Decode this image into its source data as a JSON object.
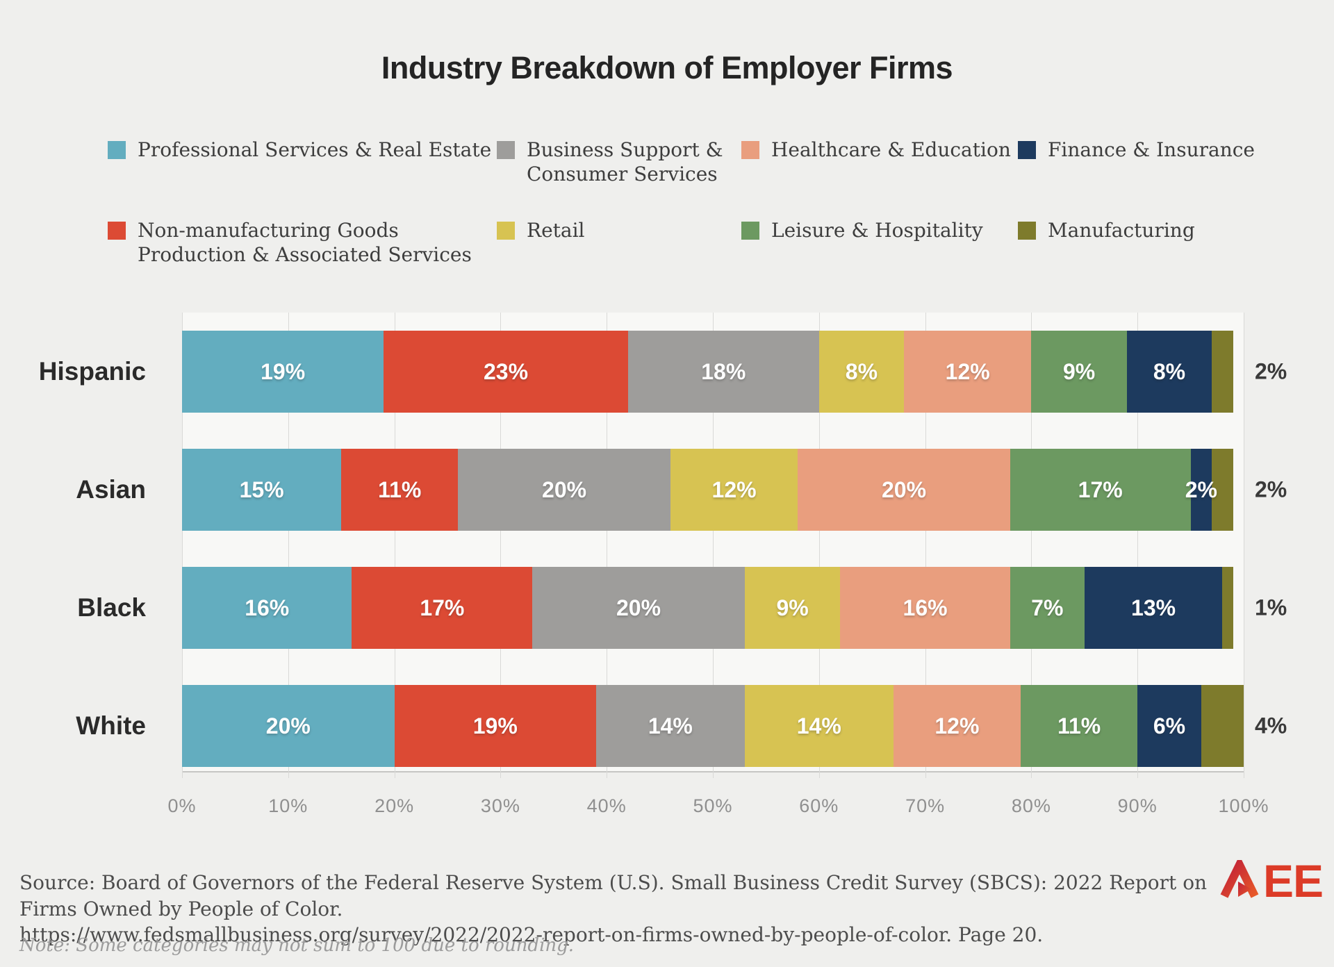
{
  "title": "Industry Breakdown of Employer Firms",
  "legend": {
    "items": [
      {
        "label": "Professional Services & Real Estate",
        "color": "#63adbf"
      },
      {
        "label": "Business Support &\nConsumer Services",
        "color": "#9e9d9b"
      },
      {
        "label": "Healthcare & Education",
        "color": "#e99e7e"
      },
      {
        "label": "Finance & Insurance",
        "color": "#1d3a5e"
      },
      {
        "label": "Non-manufacturing Goods\nProduction & Associated Services",
        "color": "#dc4a34"
      },
      {
        "label": "Retail",
        "color": "#d7c352"
      },
      {
        "label": "Leisure & Hospitality",
        "color": "#6c9961"
      },
      {
        "label": "Manufacturing",
        "color": "#7e7b2c"
      }
    ]
  },
  "chart_data": {
    "type": "bar",
    "orientation": "horizontal",
    "stacked": true,
    "title": "Industry Breakdown of Employer Firms",
    "categories": [
      "Hispanic",
      "Asian",
      "Black",
      "White"
    ],
    "series": [
      {
        "name": "Professional Services & Real Estate",
        "color": "#63adbf",
        "values": [
          19,
          15,
          16,
          20
        ]
      },
      {
        "name": "Non-manufacturing Goods Production & Associated Services",
        "color": "#dc4a34",
        "values": [
          23,
          11,
          17,
          19
        ]
      },
      {
        "name": "Business Support & Consumer Services",
        "color": "#9e9d9b",
        "values": [
          18,
          20,
          20,
          14
        ]
      },
      {
        "name": "Retail",
        "color": "#d7c352",
        "values": [
          8,
          12,
          9,
          14
        ]
      },
      {
        "name": "Healthcare & Education",
        "color": "#e99e7e",
        "values": [
          12,
          20,
          16,
          12
        ]
      },
      {
        "name": "Leisure & Hospitality",
        "color": "#6c9961",
        "values": [
          9,
          17,
          7,
          11
        ]
      },
      {
        "name": "Finance & Insurance",
        "color": "#1d3a5e",
        "values": [
          8,
          2,
          13,
          6
        ]
      },
      {
        "name": "Manufacturing",
        "color": "#7e7b2c",
        "values": [
          2,
          2,
          1,
          4
        ],
        "label_outside": true
      }
    ],
    "value_suffix": "%",
    "x_ticks": [
      "0%",
      "10%",
      "20%",
      "30%",
      "40%",
      "50%",
      "60%",
      "70%",
      "80%",
      "90%",
      "100%"
    ],
    "xlim": [
      0,
      100
    ],
    "grid": true,
    "legend_position": "top"
  },
  "footer": {
    "source_line1": "Source: Board of Governors of the Federal Reserve System (U.S). Small Business Credit Survey (SBCS): 2022 Report on Firms Owned by People of Color.",
    "source_line2": "https://www.fedsmallbusiness.org/survey/2022/2022-report-on-firms-owned-by-people-of-color. Page 20.",
    "note": "Note: Some categories may not sum to 100 due to rounding."
  },
  "logo": {
    "text": "AEE",
    "letters_after_mark": "EE",
    "color": "#dc3b27"
  }
}
